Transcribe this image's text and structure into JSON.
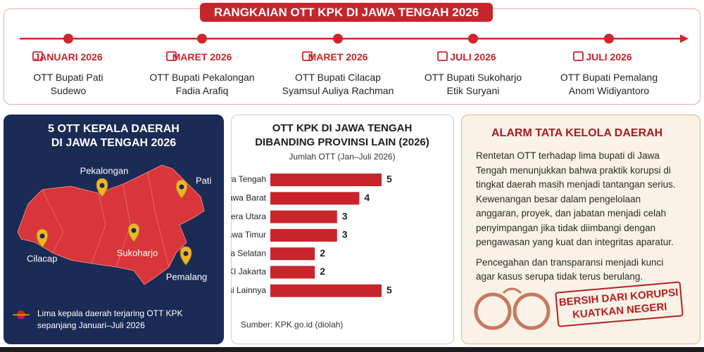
{
  "timeline": {
    "title": "RANGKAIAN OTT KPK DI JAWA TENGAH 2026",
    "events": [
      {
        "date": "JANUARI 2026",
        "lines": [
          "OTT Bupati Pati",
          "Sudewo"
        ]
      },
      {
        "date": "MARET 2026",
        "lines": [
          "OTT Bupati Pekalongan",
          "Fadia Arafiq"
        ]
      },
      {
        "date": "MARET 2026",
        "lines": [
          "OTT Bupati Cilacap",
          "Syamsul Auliya Rachman"
        ]
      },
      {
        "date": "JULI 2026",
        "lines": [
          "OTT Bupati Sukoharjo",
          "Etik Suryani"
        ]
      },
      {
        "date": "JULI 2026",
        "lines": [
          "OTT Bupati Pemalang",
          "Anom Widiyantoro"
        ]
      }
    ]
  },
  "map_panel": {
    "title_lines": [
      "5 OTT KEPALA DAERAH",
      "DI JAWA TENGAH 2026"
    ],
    "locations": [
      "Pekalongan",
      "Pati",
      "Sukoharjo",
      "Cilacap",
      "Pemalang"
    ],
    "legend_lines": [
      "Lima kepala daerah terjaring OTT KPK",
      "sepanjang Januari–Juli 2026"
    ]
  },
  "chart_data": {
    "type": "bar",
    "title_lines": [
      "OTT KPK DI JAWA TENGAH",
      "DIBANDING PROVINSI LAIN (2026)"
    ],
    "subtitle": "Jumlah OTT (Jan–Juli 2026)",
    "categories": [
      "Jawa Tengah",
      "Jawa Barat",
      "Sumatera Utara",
      "Jawa Timur",
      "Sumatera Selatan",
      "DKI Jakarta",
      "Provinsi Lainnya"
    ],
    "values": [
      5,
      4,
      3,
      3,
      2,
      2,
      5
    ],
    "color": "#c8242b",
    "source": "Sumber: KPK.go.id (diolah)"
  },
  "alarm_panel": {
    "title": "ALARM TATA KELOLA DAERAH",
    "paragraphs": [
      "Rentetan OTT terhadap lima bupati di Jawa Tengah menunjukkan bahwa praktik korupsi di tingkat daerah masih menjadi tantangan serius. Kewenangan besar dalam pengelolaan anggaran, proyek, dan jabatan menjadi celah penyimpangan jika tidak diimbangi dengan pengawasan yang kuat dan integritas aparatur.",
      "Pencegahan dan transparansi menjadi kunci agar kasus serupa tidak terus berulang."
    ],
    "stamp_lines": [
      "BERSIH DARI KORUPSI",
      "KUATKAN NEGERI"
    ]
  }
}
